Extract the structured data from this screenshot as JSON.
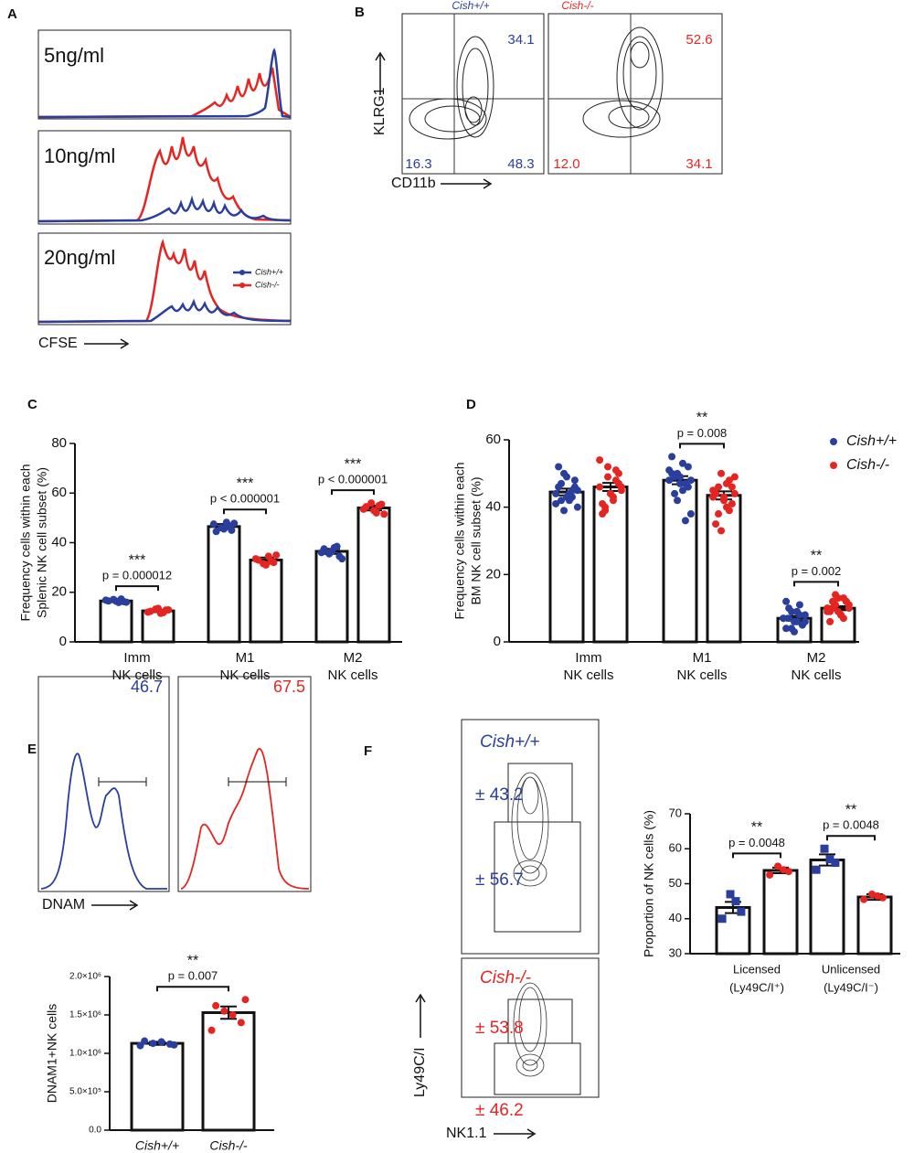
{
  "panel_letters": [
    "A",
    "B",
    "C",
    "D",
    "E",
    "F"
  ],
  "panel_a": {
    "labels": [
      "5ng/ml",
      "10ng/ml",
      "20ng/ml"
    ],
    "x_label": "CFSE",
    "legend": [
      "Cish+/+",
      "Cish-/-"
    ]
  },
  "panel_b": {
    "titles": [
      "Cish+/+",
      "Cish-/-"
    ],
    "wt_quadrants": [
      "34.1",
      "16.3",
      "48.3"
    ],
    "ko_quadrants": [
      "52.6",
      "12.0",
      "34.1"
    ],
    "y_label": "KLRG1",
    "x_label": "CD11b"
  },
  "panel_e_top": {
    "wt_gate": "46.7",
    "ko_gate": "67.5",
    "x_label": "DNAM"
  },
  "panel_f_left": {
    "titles": [
      "Cish+/+",
      "Cish-/-"
    ],
    "wt_gates": [
      "± 43.2",
      "± 56.7"
    ],
    "ko_gates": [
      "± 53.8",
      "± 46.2"
    ],
    "y_label": "Ly49C/I",
    "x_label": "NK1.1"
  },
  "chart_data": [
    {
      "type": "bar",
      "y_label": [
        "Frequency cells within each",
        "Splenic NK cell subset (%)"
      ],
      "categories": [
        "Imm",
        "M1",
        "M2"
      ],
      "category_suffix": "NK cells",
      "ylim": [
        0,
        80
      ],
      "yticks": [
        0,
        20,
        40,
        60,
        80
      ],
      "series": [
        {
          "name": "Cish+/+",
          "color": "#2a3f9d",
          "marker": "circle",
          "values": [
            16.5,
            46.5,
            36.5
          ],
          "errors": [
            0.5,
            1.0,
            1.0
          ],
          "points": [
            [
              16.8,
              16.2,
              15.9,
              17.1,
              16.5,
              16.0,
              17.3,
              16.4
            ],
            [
              47.5,
              45.0,
              48.2,
              46.0,
              44.5,
              47.8,
              46.8,
              45.5
            ],
            [
              36.0,
              34.5,
              38.0,
              35.5,
              37.5,
              33.5,
              38.5,
              36.5
            ]
          ]
        },
        {
          "name": "Cish-/-",
          "color": "#e52521",
          "marker": "circle",
          "values": [
            12.5,
            33.0,
            54.0
          ],
          "errors": [
            0.5,
            1.0,
            1.0
          ],
          "points": [
            [
              12.0,
              12.8,
              11.5,
              13.2,
              12.3,
              12.9,
              11.8,
              13.5
            ],
            [
              33.5,
              32.0,
              34.5,
              31.5,
              33.0,
              35.0,
              32.5,
              31.0
            ],
            [
              53.5,
              55.5,
              52.0,
              56.0,
              54.5,
              51.5,
              55.0,
              53.0
            ]
          ]
        }
      ],
      "annotations": [
        {
          "category": 0,
          "stars": "***",
          "text": "p = 0.000012"
        },
        {
          "category": 1,
          "stars": "***",
          "text": "p < 0.000001"
        },
        {
          "category": 2,
          "stars": "***",
          "text": "p < 0.000001"
        }
      ]
    },
    {
      "type": "bar",
      "y_label": [
        "Frequency cells within each",
        "BM NK cell subset (%)"
      ],
      "categories": [
        "Imm",
        "M1",
        "M2"
      ],
      "category_suffix": "NK cells",
      "ylim": [
        0,
        60
      ],
      "yticks": [
        0,
        20,
        40,
        60
      ],
      "legend": "upper right",
      "series": [
        {
          "name": "Cish+/+",
          "color": "#2a3f9d",
          "marker": "circle",
          "values": [
            44.5,
            48.0,
            7.0
          ],
          "errors": [
            1.0,
            1.2,
            0.7
          ],
          "points": [
            [
              44,
              46,
              42,
              50,
              52,
              40,
              45,
              43,
              47,
              41,
              48,
              44,
              39,
              46,
              45,
              43,
              49,
              42
            ],
            [
              48,
              52,
              45,
              50,
              55,
              38,
              47,
              49,
              44,
              51,
              46,
              53,
              42,
              50,
              48,
              36,
              47,
              49
            ],
            [
              7,
              5,
              9,
              4,
              12,
              6,
              8,
              3,
              10,
              7,
              5,
              6,
              9,
              4,
              8,
              11,
              6,
              7
            ]
          ]
        },
        {
          "name": "Cish-/-",
          "color": "#e52521",
          "marker": "circle",
          "values": [
            46.0,
            43.5,
            10.0
          ],
          "errors": [
            1.2,
            1.2,
            0.6
          ],
          "points": [
            [
              46,
              50,
              42,
              52,
              38,
              45,
              48,
              44,
              40,
              54,
              47,
              43,
              49,
              41,
              46,
              51,
              44,
              39
            ],
            [
              43,
              46,
              40,
              50,
              35,
              44,
              48,
              42,
              38,
              45,
              41,
              47,
              33,
              44,
              49,
              39,
              43,
              46
            ],
            [
              10,
              12,
              8,
              14,
              9,
              11,
              7,
              13,
              10,
              9,
              12,
              8,
              11,
              6,
              10,
              13,
              9,
              12
            ]
          ]
        }
      ],
      "annotations": [
        {
          "category": 1,
          "stars": "**",
          "text": "p = 0.008"
        },
        {
          "category": 2,
          "stars": "**",
          "text": "p = 0.002"
        }
      ]
    },
    {
      "type": "bar",
      "y_label": [
        "DNAM1+NK cells"
      ],
      "categories": [
        "Cish+/+",
        "Cish-/-"
      ],
      "ylim": [
        0,
        2000000
      ],
      "yticks": [
        {
          "value": 0,
          "label": "0.0"
        },
        {
          "value": 500000,
          "label": "5.0×10⁵"
        },
        {
          "value": 1000000,
          "label": "1.0×10⁶"
        },
        {
          "value": 1500000,
          "label": "1.5×10⁶"
        },
        {
          "value": 2000000,
          "label": "2.0×10⁶"
        }
      ],
      "point_colors": [
        "#2a3f9d",
        "#e52521"
      ],
      "series": [
        {
          "marker": "circle",
          "values": [
            1130000,
            1530000
          ],
          "errors": [
            20000,
            80000
          ],
          "points": [
            [
              1100000,
              1120000,
              1150000,
              1130000,
              1160000,
              1110000
            ],
            [
              1300000,
              1400000,
              1500000,
              1550000,
              1620000,
              1700000
            ]
          ]
        }
      ],
      "annotations": [
        {
          "category": "all",
          "stars": "**",
          "text": "p = 0.007"
        }
      ]
    },
    {
      "type": "bar",
      "y_label": [
        "Proportion of NK cells (%)"
      ],
      "categories": [
        "Licensed",
        "Unlicensed"
      ],
      "category_sublabels": [
        "(Ly49C/I⁺)",
        "(Ly49C/I⁻)"
      ],
      "ylim": [
        30,
        70
      ],
      "yticks": [
        30,
        40,
        50,
        60,
        70
      ],
      "series": [
        {
          "name": "Cish+/+",
          "color": "#2a3f9d",
          "marker": "square",
          "values": [
            43.2,
            56.8
          ],
          "errors": [
            1.6,
            1.6
          ],
          "points": [
            [
              40,
              42,
              45,
              47
            ],
            [
              54,
              56,
              57,
              60
            ]
          ]
        },
        {
          "name": "Cish-/-",
          "color": "#e52521",
          "marker": "circle",
          "values": [
            53.8,
            46.2
          ],
          "errors": [
            0.8,
            0.8
          ],
          "points": [
            [
              52.5,
              53.5,
              54,
              55
            ],
            [
              45.5,
              46,
              46.5,
              47
            ]
          ]
        }
      ],
      "annotations": [
        {
          "category": 0,
          "stars": "**",
          "text": "p = 0.0048"
        },
        {
          "category": 1,
          "stars": "**",
          "text": "p = 0.0048"
        }
      ]
    }
  ]
}
